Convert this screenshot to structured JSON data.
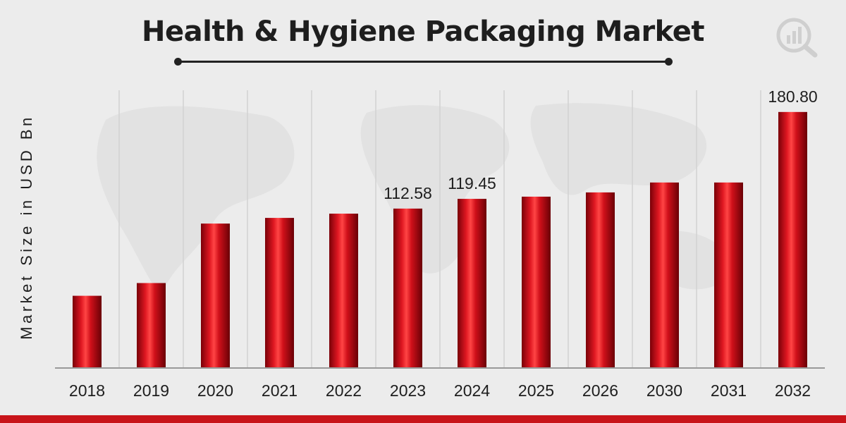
{
  "chart_data": {
    "type": "bar",
    "title": "Health & Hygiene Packaging Market",
    "ylabel": "Market Size in USD Bn",
    "xlabel": "",
    "categories": [
      "2018",
      "2019",
      "2020",
      "2021",
      "2022",
      "2023",
      "2024",
      "2025",
      "2026",
      "2030",
      "2031",
      "2032"
    ],
    "values": [
      51,
      60,
      102,
      106,
      109,
      112.58,
      119.45,
      121,
      124,
      131,
      131,
      180.8
    ],
    "data_labels": {
      "5": "112.58",
      "6": "119.45",
      "11": "180.80"
    },
    "ylim": [
      0,
      230
    ],
    "grid": "vertical",
    "colors": {
      "bar": "#d0101a",
      "bar_dark": "#7a0008",
      "bar_light": "#ff4a4a",
      "grid": "#d2d2d2",
      "axis": "#999999"
    }
  }
}
